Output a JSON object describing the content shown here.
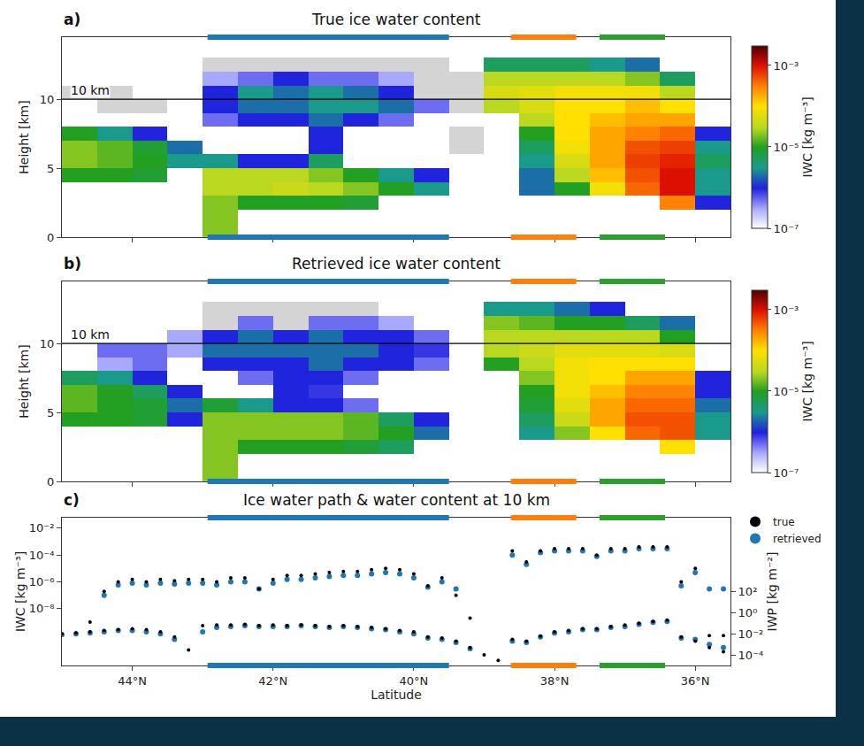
{
  "chart_data": [
    {
      "type": "heatmap",
      "panel": "a)",
      "title": "True ice water content",
      "x": [
        44.75,
        44.25,
        43.75,
        43.25,
        42.75,
        42.25,
        41.75,
        41.25,
        40.75,
        40.25,
        39.75,
        39.25,
        38.75,
        38.25,
        37.75,
        37.25,
        36.75,
        36.25,
        35.75
      ],
      "y": [
        0.5,
        1.5,
        2.5,
        3.5,
        4.5,
        5.5,
        6.5,
        7.5,
        8.5,
        9.5,
        10.5,
        11.5,
        12.5,
        13.5
      ],
      "cells": [
        [
          null,
          null,
          null,
          null,
          2e-05,
          null,
          null,
          null,
          null,
          null,
          null,
          null,
          null,
          null,
          null,
          null,
          null,
          null,
          null
        ],
        [
          null,
          null,
          null,
          null,
          2e-05,
          null,
          null,
          null,
          null,
          null,
          null,
          null,
          null,
          null,
          null,
          null,
          null,
          null,
          null
        ],
        [
          null,
          null,
          null,
          null,
          2e-05,
          1e-05,
          1e-05,
          1e-05,
          8e-06,
          null,
          null,
          null,
          null,
          null,
          null,
          null,
          null,
          0.0003,
          1e-06
        ],
        [
          null,
          null,
          null,
          null,
          3e-05,
          3e-05,
          4e-05,
          3e-05,
          2e-05,
          1e-05,
          3e-06,
          null,
          null,
          2e-06,
          1e-05,
          8e-05,
          0.0004,
          0.001,
          3e-06
        ],
        [
          1e-05,
          1e-05,
          8e-06,
          null,
          3e-05,
          3e-05,
          3e-05,
          2e-05,
          1e-05,
          3e-06,
          1e-06,
          null,
          null,
          2e-06,
          3e-05,
          0.00015,
          0.0005,
          0.001,
          3e-06
        ],
        [
          2e-05,
          1.5e-05,
          1e-05,
          3e-06,
          3e-06,
          1e-06,
          1e-06,
          5e-06,
          null,
          null,
          null,
          null,
          null,
          3e-06,
          5e-05,
          0.0002,
          0.0006,
          0.0008,
          5e-06
        ],
        [
          2e-05,
          1.5e-05,
          8e-06,
          2e-06,
          null,
          null,
          null,
          1e-06,
          null,
          null,
          null,
          5e-08,
          null,
          5e-06,
          8e-05,
          0.0002,
          0.0005,
          0.0006,
          3e-06
        ],
        [
          1e-05,
          3e-06,
          1e-06,
          null,
          null,
          null,
          null,
          1e-06,
          null,
          null,
          null,
          5e-08,
          null,
          1e-05,
          0.0001,
          0.0002,
          0.0003,
          0.0004,
          1e-06
        ],
        [
          null,
          null,
          null,
          null,
          5e-07,
          1e-06,
          1e-06,
          2e-06,
          1e-06,
          5e-07,
          null,
          null,
          null,
          3e-05,
          0.0001,
          0.00015,
          0.0002,
          0.0002,
          null
        ],
        [
          null,
          5e-08,
          5e-08,
          null,
          1e-06,
          2e-06,
          2e-06,
          3e-06,
          3e-06,
          2e-06,
          5e-07,
          5e-08,
          3e-05,
          5e-05,
          0.0001,
          0.0001,
          0.00015,
          0.0001,
          null
        ],
        [
          5e-08,
          5e-08,
          null,
          null,
          1e-06,
          3e-06,
          2e-06,
          3e-06,
          2e-06,
          1e-06,
          5e-08,
          5e-08,
          5e-05,
          6e-05,
          8e-05,
          8e-05,
          8e-05,
          3e-05,
          null
        ],
        [
          null,
          null,
          null,
          null,
          3e-07,
          5e-07,
          1e-06,
          5e-07,
          5e-07,
          3e-07,
          5e-08,
          5e-08,
          3e-05,
          3e-05,
          3e-05,
          3e-05,
          2e-05,
          5e-06,
          null
        ],
        [
          null,
          null,
          null,
          null,
          5e-08,
          5e-08,
          5e-08,
          5e-08,
          5e-08,
          5e-08,
          5e-08,
          null,
          5e-06,
          5e-06,
          5e-06,
          3e-06,
          2e-06,
          null,
          null
        ],
        [
          null,
          null,
          null,
          null,
          null,
          null,
          null,
          null,
          null,
          null,
          null,
          null,
          null,
          null,
          null,
          null,
          null,
          null,
          null
        ]
      ],
      "colorbar": {
        "title": "IWC [kg m⁻³]",
        "range": [
          1e-07,
          0.003
        ],
        "ticks": [
          {
            "value": 1e-07,
            "label": "10⁻⁷"
          },
          {
            "value": 1e-05,
            "label": "10⁻⁵"
          },
          {
            "value": 0.001,
            "label": "10⁻³"
          }
        ]
      },
      "xlim": [
        45.0,
        35.5
      ],
      "xticks": [
        44,
        42,
        40,
        38,
        36
      ],
      "ylim": [
        0,
        14.5
      ],
      "yticks": [
        0,
        5,
        10
      ],
      "ylabel": "Height [km]",
      "tick_labels": "y",
      "reference_line": {
        "y": 10,
        "label": "10 km"
      },
      "regions": [
        {
          "from": 42.93,
          "to": 39.5,
          "color": "#1f77b4"
        },
        {
          "from": 38.62,
          "to": 37.69,
          "color": "#ff7f0e"
        },
        {
          "from": 37.36,
          "to": 36.43,
          "color": "#2ca02c"
        }
      ]
    },
    {
      "type": "heatmap",
      "panel": "b)",
      "title": "Retrieved ice water content",
      "x": [
        44.75,
        44.25,
        43.75,
        43.25,
        42.75,
        42.25,
        41.75,
        41.25,
        40.75,
        40.25,
        39.75,
        39.25,
        38.75,
        38.25,
        37.75,
        37.25,
        36.75,
        36.25,
        35.75
      ],
      "y": [
        0.5,
        1.5,
        2.5,
        3.5,
        4.5,
        5.5,
        6.5,
        7.5,
        8.5,
        9.5,
        10.5,
        11.5,
        12.5,
        13.5
      ],
      "cells": [
        [
          null,
          null,
          null,
          null,
          2e-05,
          null,
          null,
          null,
          null,
          null,
          null,
          null,
          null,
          null,
          null,
          null,
          null,
          null,
          null
        ],
        [
          null,
          null,
          null,
          null,
          2e-05,
          null,
          null,
          null,
          null,
          null,
          null,
          null,
          null,
          null,
          null,
          null,
          null,
          null,
          null
        ],
        [
          null,
          null,
          null,
          null,
          2e-05,
          1e-05,
          1e-05,
          1e-05,
          8e-06,
          5e-06,
          null,
          null,
          null,
          null,
          null,
          null,
          null,
          0.0001,
          null
        ],
        [
          null,
          null,
          null,
          null,
          2e-05,
          2e-05,
          2e-05,
          2e-05,
          1.5e-05,
          1e-05,
          2e-06,
          null,
          null,
          3e-06,
          2e-05,
          0.0001,
          0.0004,
          0.0005,
          3e-06
        ],
        [
          1e-05,
          1e-05,
          8e-06,
          1e-06,
          2e-05,
          2e-05,
          2e-05,
          2e-05,
          1.5e-05,
          5e-06,
          1e-06,
          null,
          null,
          5e-06,
          4e-05,
          0.0002,
          0.0005,
          0.0005,
          3e-06
        ],
        [
          1.5e-05,
          1e-05,
          8e-06,
          2e-06,
          8e-06,
          3e-06,
          1e-06,
          1e-06,
          5e-07,
          null,
          null,
          null,
          null,
          8e-06,
          6e-05,
          0.0002,
          0.0004,
          0.0004,
          2e-06
        ],
        [
          1.5e-05,
          1e-05,
          5e-06,
          1e-06,
          null,
          null,
          1e-06,
          8e-07,
          null,
          null,
          null,
          null,
          null,
          1e-05,
          8e-05,
          0.00015,
          0.0003,
          0.0003,
          1e-06
        ],
        [
          5e-06,
          3e-06,
          1e-06,
          null,
          null,
          5e-07,
          1e-06,
          1e-06,
          5e-07,
          null,
          null,
          null,
          null,
          2e-05,
          8e-05,
          0.0001,
          0.0002,
          0.0002,
          1e-06
        ],
        [
          null,
          3e-07,
          5e-07,
          null,
          1e-06,
          1e-06,
          1e-06,
          2e-06,
          1e-06,
          1e-06,
          5e-07,
          null,
          1e-05,
          3e-05,
          8e-05,
          0.0001,
          0.0001,
          0.0001,
          null
        ],
        [
          null,
          5e-07,
          5e-07,
          3e-07,
          2e-06,
          2e-06,
          2e-06,
          2e-06,
          2e-06,
          1e-06,
          8e-07,
          null,
          3e-05,
          4e-05,
          6e-05,
          6e-05,
          6e-05,
          5e-05,
          null
        ],
        [
          null,
          null,
          null,
          3e-07,
          1e-06,
          2e-06,
          1e-06,
          2e-06,
          1e-06,
          1e-06,
          5e-07,
          null,
          3e-05,
          3e-05,
          3e-05,
          3e-05,
          3e-05,
          1e-05,
          null
        ],
        [
          null,
          null,
          null,
          null,
          5e-08,
          5e-07,
          5e-08,
          5e-07,
          5e-07,
          3e-07,
          null,
          null,
          2e-05,
          1.5e-05,
          1e-05,
          1e-05,
          5e-06,
          2e-06,
          null
        ],
        [
          null,
          null,
          null,
          null,
          5e-08,
          5e-08,
          5e-08,
          5e-08,
          5e-08,
          null,
          null,
          null,
          3e-06,
          3e-06,
          2e-06,
          1e-06,
          null,
          null,
          null
        ],
        [
          null,
          null,
          null,
          null,
          null,
          null,
          null,
          null,
          null,
          null,
          null,
          null,
          null,
          null,
          null,
          null,
          null,
          null,
          null
        ]
      ],
      "colorbar": {
        "title": "IWC [kg m⁻³]",
        "range": [
          1e-07,
          0.003
        ],
        "ticks": [
          {
            "value": 1e-07,
            "label": "10⁻⁷"
          },
          {
            "value": 1e-05,
            "label": "10⁻⁵"
          },
          {
            "value": 0.001,
            "label": "10⁻³"
          }
        ]
      },
      "xlim": [
        45.0,
        35.5
      ],
      "xticks": [
        44,
        42,
        40,
        38,
        36
      ],
      "ylim": [
        0,
        14.5
      ],
      "yticks": [
        0,
        5,
        10
      ],
      "ylabel": "Height [km]",
      "tick_labels": "y",
      "reference_line": {
        "y": 10,
        "label": "10 km"
      },
      "regions": [
        {
          "from": 42.93,
          "to": 39.5,
          "color": "#1f77b4"
        },
        {
          "from": 38.62,
          "to": 37.69,
          "color": "#ff7f0e"
        },
        {
          "from": 37.36,
          "to": 36.43,
          "color": "#2ca02c"
        }
      ]
    },
    {
      "type": "scatter",
      "panel": "c)",
      "title": "Ice water path & water content at 10 km",
      "x": [
        45.0,
        44.8,
        44.6,
        44.4,
        44.2,
        44.0,
        43.8,
        43.6,
        43.4,
        43.2,
        43.0,
        42.8,
        42.6,
        42.4,
        42.2,
        42.0,
        41.8,
        41.6,
        41.4,
        41.2,
        41.0,
        40.8,
        40.6,
        40.4,
        40.2,
        40.0,
        39.8,
        39.6,
        39.4,
        39.2,
        39.0,
        38.8,
        38.6,
        38.4,
        38.2,
        38.0,
        37.8,
        37.6,
        37.4,
        37.2,
        37.0,
        36.8,
        36.6,
        36.4,
        36.2,
        36.0,
        35.8,
        35.6
      ],
      "series": [
        {
          "name": "true",
          "color": "#000000",
          "marker": "circle",
          "axis": "y",
          "values": [
            null,
            null,
            1e-09,
            2e-07,
            1e-06,
            1.5e-06,
            1e-06,
            1.5e-06,
            1.2e-06,
            1.5e-06,
            1.5e-06,
            1e-06,
            2e-06,
            2e-06,
            3e-07,
            1.5e-06,
            3e-06,
            3e-06,
            4e-06,
            5e-06,
            6e-06,
            6e-06,
            8e-06,
            1e-05,
            8e-06,
            4e-06,
            5e-07,
            2e-06,
            1e-07,
            2e-09,
            null,
            null,
            0.0002,
            3e-05,
            0.0002,
            0.0003,
            0.0003,
            0.0003,
            0.0001,
            0.0003,
            0.0003,
            0.0004,
            0.0004,
            0.0004,
            1e-06,
            1e-05,
            1e-10,
            1e-10
          ]
        },
        {
          "name": "retrieved",
          "color": "#1f77b4",
          "marker": "circle",
          "axis": "y",
          "values": [
            null,
            null,
            null,
            1e-07,
            6e-07,
            8e-07,
            6e-07,
            8e-07,
            7e-07,
            8e-07,
            8e-07,
            6e-07,
            1e-06,
            1e-06,
            3e-07,
            8e-07,
            1.5e-06,
            1.5e-06,
            2e-06,
            2.5e-06,
            3e-06,
            3e-06,
            4e-06,
            5e-06,
            4e-06,
            2e-06,
            4e-07,
            1e-06,
            3e-07,
            null,
            null,
            null,
            0.0001,
            2e-05,
            0.00015,
            0.0002,
            0.0002,
            0.0002,
            8e-05,
            0.0002,
            0.0002,
            0.0003,
            0.0003,
            0.0003,
            5e-07,
            5e-06,
            3e-07,
            3e-07
          ]
        },
        {
          "name": "true",
          "color": "#000000",
          "marker": "circle",
          "axis": "y2",
          "values": [
            0.01,
            0.012,
            0.015,
            0.02,
            0.025,
            0.03,
            0.025,
            0.015,
            0.005,
            0.0003,
            0.06,
            0.07,
            0.07,
            0.08,
            0.06,
            0.07,
            0.06,
            0.07,
            0.06,
            0.05,
            0.06,
            0.05,
            0.04,
            0.03,
            0.02,
            0.015,
            0.005,
            0.004,
            0.002,
            0.0005,
            0.0001,
            3e-05,
            0.003,
            0.002,
            0.006,
            0.015,
            0.02,
            0.03,
            0.03,
            0.05,
            0.07,
            0.1,
            0.15,
            0.2,
            0.005,
            0.002,
            0.0005,
            0.0002
          ]
        },
        {
          "name": "retrieved",
          "color": "#1f77b4",
          "marker": "circle",
          "axis": "y2",
          "values": [
            0.008,
            0.01,
            0.012,
            0.015,
            0.02,
            0.02,
            0.015,
            0.01,
            0.003,
            null,
            0.015,
            0.04,
            0.05,
            0.06,
            0.05,
            0.05,
            0.05,
            0.06,
            0.05,
            0.04,
            0.05,
            0.04,
            0.03,
            0.025,
            0.015,
            0.01,
            0.004,
            0.003,
            0.0015,
            0.0004,
            null,
            null,
            0.002,
            0.0015,
            0.005,
            0.012,
            0.015,
            0.025,
            0.025,
            0.04,
            0.05,
            0.08,
            0.12,
            0.15,
            0.004,
            0.003,
            0.001,
            0.0005
          ]
        }
      ],
      "xlim": [
        45.0,
        35.5
      ],
      "xticks": [
        {
          "value": 44,
          "label": "44°N"
        },
        {
          "value": 42,
          "label": "42°N"
        },
        {
          "value": 40,
          "label": "40°N"
        },
        {
          "value": 38,
          "label": "38°N"
        },
        {
          "value": 36,
          "label": "36°N"
        }
      ],
      "xlabel": "Latitude",
      "ylim": [
        6e-13,
        0.06
      ],
      "yticks": [
        {
          "value": 1e-08,
          "label": "10⁻⁸"
        },
        {
          "value": 1e-06,
          "label": "10⁻⁶"
        },
        {
          "value": 0.0001,
          "label": "10⁻⁴"
        },
        {
          "value": 0.01,
          "label": "10⁻²"
        }
      ],
      "ylabel": "IWC [kg m⁻³]",
      "y2lim": [
        1e-05,
        1000000000.0
      ],
      "y2ticks": [
        {
          "value": 0.0001,
          "label": "10⁻⁴"
        },
        {
          "value": 0.01,
          "label": "10⁻²"
        },
        {
          "value": 1,
          "label": "10⁰"
        },
        {
          "value": 100,
          "label": "10²"
        }
      ],
      "y2label": "IWP [kg m⁻²]",
      "log": "y",
      "legend": "upper right",
      "regions": [
        {
          "from": 42.93,
          "to": 39.5,
          "color": "#1f77b4"
        },
        {
          "from": 38.62,
          "to": 37.69,
          "color": "#ff7f0e"
        },
        {
          "from": 37.36,
          "to": 36.43,
          "color": "#2ca02c"
        }
      ]
    }
  ]
}
